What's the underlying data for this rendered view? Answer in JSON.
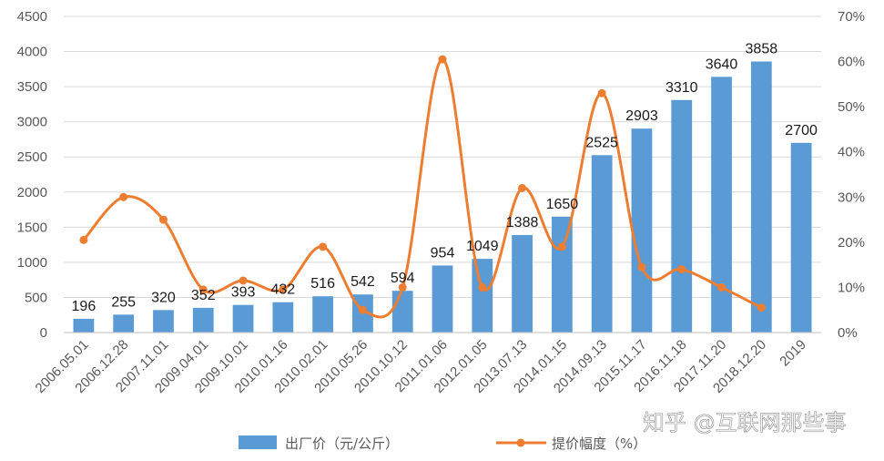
{
  "chart_data": {
    "type": "bar",
    "categories": [
      "2006.05.01",
      "2006.12.28",
      "2007.11.01",
      "2009.04.01",
      "2009.10.01",
      "2010.01.16",
      "2010.02.01",
      "2010.05.26",
      "2010.10.12",
      "2011.01.06",
      "2012.01.05",
      "2013.07.13",
      "2014.01.15",
      "2014.09.13",
      "2015.11.17",
      "2016.11.18",
      "2017.11.20",
      "2018.12.20",
      "2019"
    ],
    "series": [
      {
        "name": "出厂价（元/公斤）",
        "type": "bar",
        "axis": "left",
        "color": "#5b9bd5",
        "values": [
          196,
          255,
          320,
          352,
          393,
          432,
          516,
          542,
          594,
          954,
          1049,
          1388,
          1650,
          2525,
          2903,
          3310,
          3640,
          3858,
          2700
        ],
        "labels": [
          "196",
          "255",
          "320",
          "352",
          "393",
          "432",
          "516",
          "542",
          "594",
          "954",
          "1049",
          "1388",
          "1650",
          "2525",
          "2903",
          "3310",
          "3640",
          "3858",
          "2700"
        ]
      },
      {
        "name": "提价幅度（%）",
        "type": "line",
        "axis": "right",
        "color": "#ed7d31",
        "smooth": true,
        "values": [
          20.5,
          30,
          25,
          9.5,
          11.5,
          9.5,
          19,
          5,
          10,
          60.5,
          10,
          32,
          19,
          53,
          14.5,
          14,
          10,
          5.5,
          null
        ]
      }
    ],
    "y_left": {
      "ylim": [
        0,
        4500
      ],
      "ticks": [
        "0",
        "500",
        "1000",
        "1500",
        "2000",
        "2500",
        "3000",
        "3500",
        "4000",
        "4500"
      ]
    },
    "y_right": {
      "ylim": [
        0,
        70
      ],
      "ticks": [
        "0%",
        "10%",
        "20%",
        "30%",
        "40%",
        "50%",
        "60%",
        "70%"
      ]
    },
    "grid": true,
    "legend": "bottom",
    "watermark": "知乎 @互联网那些事"
  }
}
